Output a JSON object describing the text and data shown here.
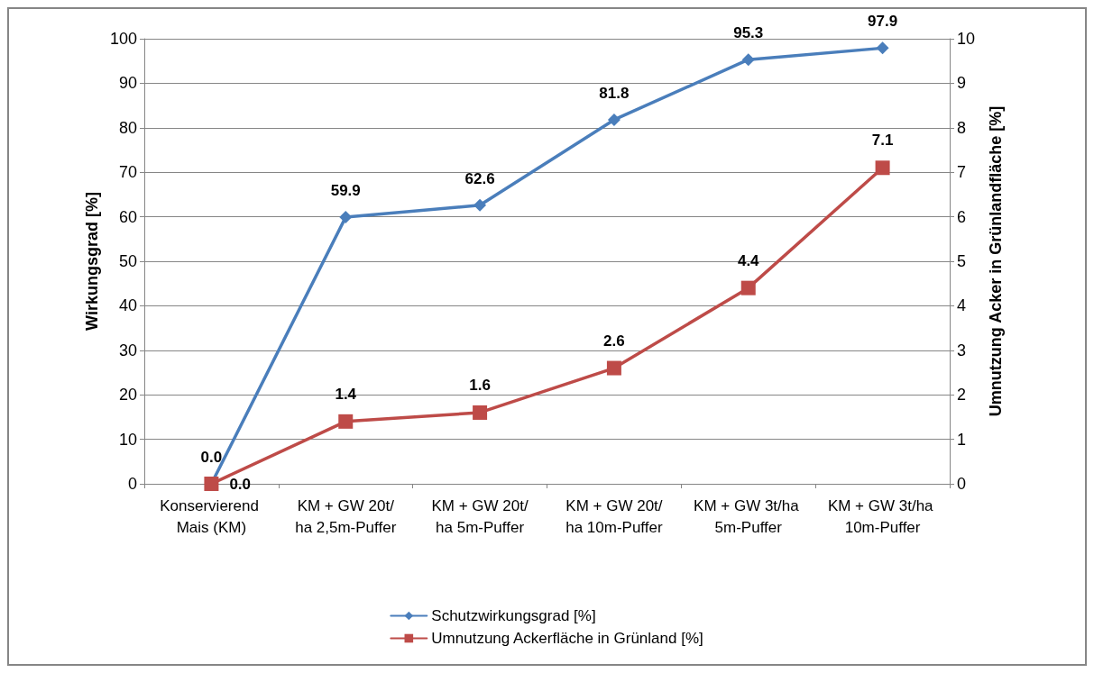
{
  "chart_data": {
    "type": "line",
    "ylabel": "Wirkungsgrad [%]",
    "y2label": "Umnutzung Acker in Grünlandfläche [%]",
    "categories": [
      "Konservierend Mais (KM)",
      "KM + GW 20t/ha 2,5m-Puffer",
      "KM + GW 20t/ha 5m-Puffer",
      "KM + GW 20t/ha 10m-Puffer",
      "KM + GW 3t/ha 5m-Puffer",
      "KM + GW 3t/ha 10m-Puffer"
    ],
    "series": [
      {
        "name": "Schutzwirkungsgrad [%]",
        "color": "#4a7ebb",
        "marker": "diamond",
        "values": [
          0,
          59.9,
          62.6,
          81.8,
          95.3,
          97.9
        ],
        "value_labels": [
          "0.0",
          "59.9",
          "62.6",
          "81.8",
          "95.3",
          "97.9"
        ]
      },
      {
        "name": "Umnutzung Ackerfläche in Grünland [%]",
        "color": "#be4b48",
        "marker": "square",
        "axis": "y2",
        "values": [
          0,
          1.4,
          1.6,
          2.6,
          4.4,
          7.1
        ],
        "value_labels": [
          "0.0",
          "1.4",
          "1.6",
          "2.6",
          "4.4",
          "7.1"
        ]
      }
    ],
    "ylim": [
      0,
      100
    ],
    "yticks": [
      0,
      10,
      20,
      30,
      40,
      50,
      60,
      70,
      80,
      90,
      100
    ],
    "y2lim": [
      0,
      10
    ],
    "y2ticks": [
      0,
      1,
      2,
      3,
      4,
      5,
      6,
      7,
      8,
      9,
      10
    ],
    "grid": "y",
    "legend": "bottom",
    "line_style": "solid"
  }
}
